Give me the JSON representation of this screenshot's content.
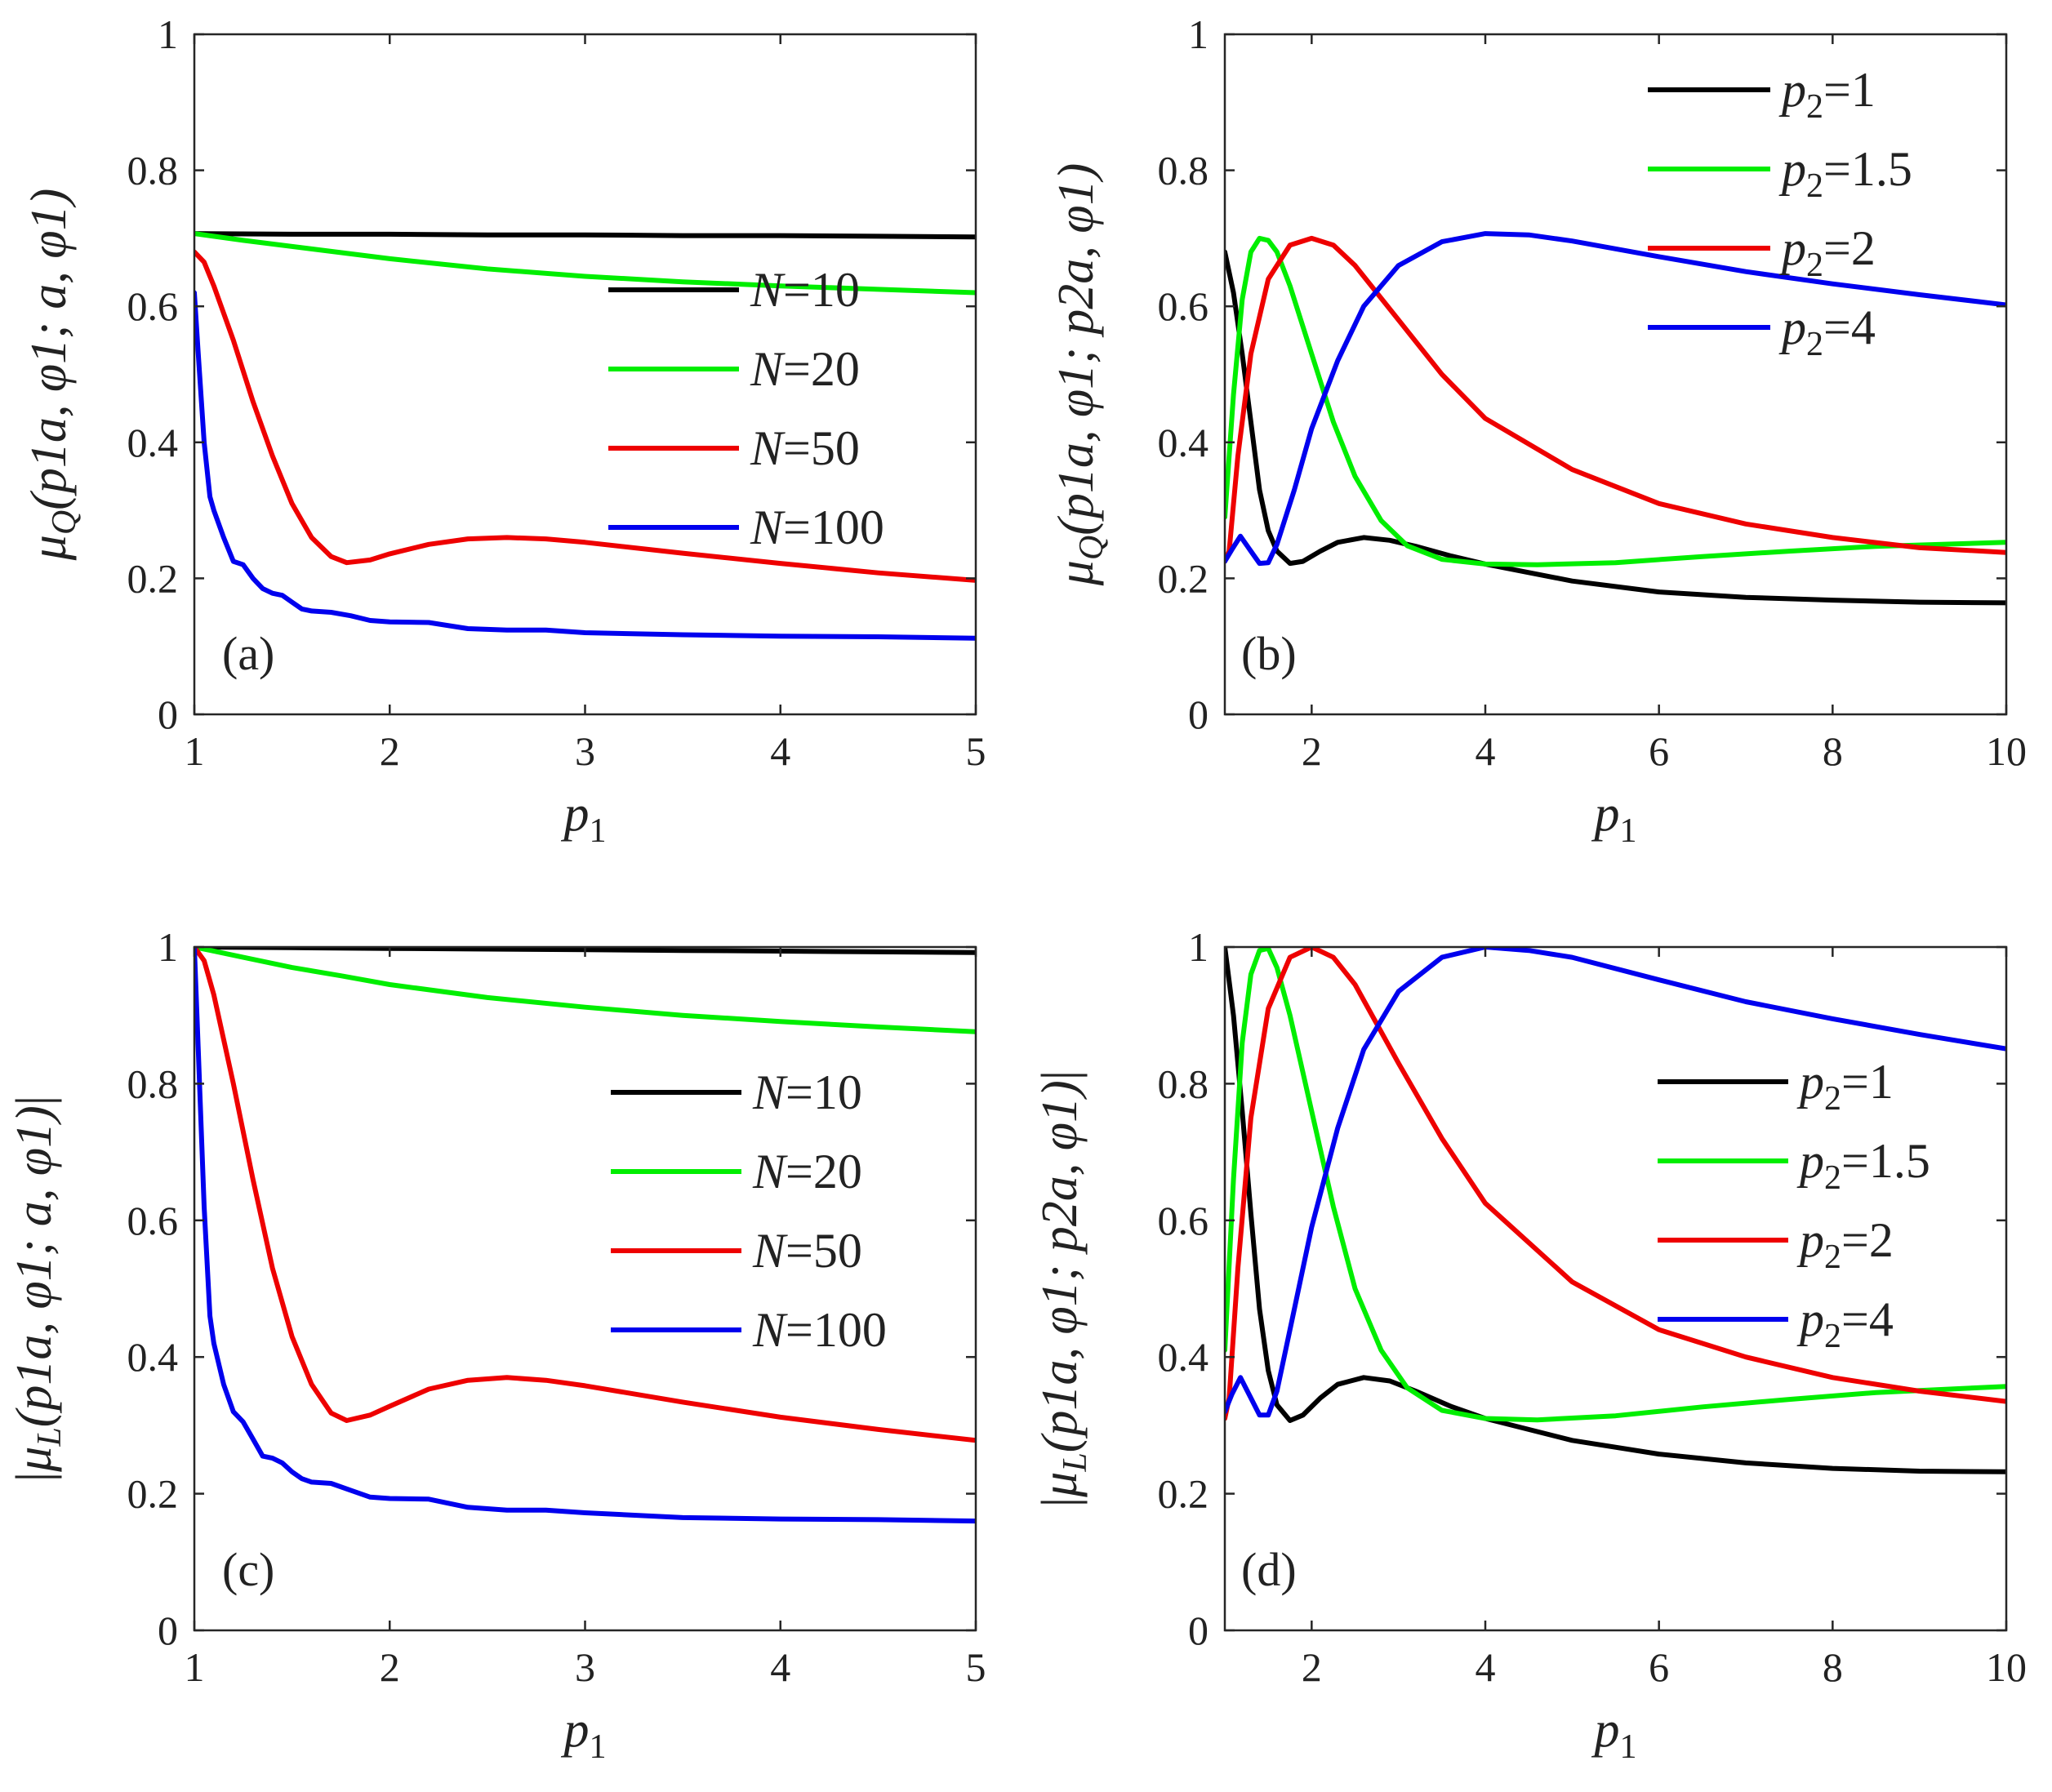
{
  "chart_data": [
    {
      "type": "line",
      "panel_label": "(a)",
      "xlabel": "p1",
      "xlabel_main": "p",
      "xlabel_sub": "1",
      "ylabel": "μQ(p1a, φ1; a, φ1)",
      "xlim": [
        1,
        5
      ],
      "ylim": [
        0,
        1
      ],
      "xticks": [
        1,
        2,
        3,
        4,
        5
      ],
      "xtick_labels": [
        "1",
        "2",
        "3",
        "4",
        "5"
      ],
      "yticks": [
        0,
        0.2,
        0.4,
        0.6,
        0.8,
        1
      ],
      "ytick_labels": [
        "0",
        "0.2",
        "0.4",
        "0.6",
        "0.8",
        "1"
      ],
      "legend_position": "center-right",
      "series": [
        {
          "name": "N=10",
          "label": "N=10",
          "color": "#000000",
          "x": [
            1,
            1.5,
            2,
            2.5,
            3,
            3.5,
            4,
            4.5,
            5
          ],
          "y": [
            0.707,
            0.706,
            0.706,
            0.705,
            0.705,
            0.704,
            0.704,
            0.703,
            0.702
          ]
        },
        {
          "name": "N=20",
          "label": "N=20",
          "color": "#00ee00",
          "x": [
            1,
            1.25,
            1.5,
            1.75,
            2,
            2.5,
            3,
            3.5,
            4,
            4.5,
            5
          ],
          "y": [
            0.707,
            0.697,
            0.688,
            0.679,
            0.67,
            0.655,
            0.644,
            0.636,
            0.63,
            0.625,
            0.62
          ]
        },
        {
          "name": "N=50",
          "label": "N=50",
          "color": "#ee0000",
          "x": [
            1,
            1.05,
            1.1,
            1.2,
            1.3,
            1.4,
            1.5,
            1.6,
            1.7,
            1.78,
            1.9,
            2.0,
            2.2,
            2.4,
            2.6,
            2.8,
            3.0,
            3.5,
            4.0,
            4.5,
            5.0
          ],
          "y": [
            0.68,
            0.665,
            0.63,
            0.55,
            0.46,
            0.38,
            0.31,
            0.26,
            0.232,
            0.223,
            0.227,
            0.236,
            0.25,
            0.258,
            0.26,
            0.258,
            0.253,
            0.237,
            0.222,
            0.208,
            0.197
          ]
        },
        {
          "name": "N=100",
          "label": "N=100",
          "color": "#0000ee",
          "x": [
            1,
            1.02,
            1.05,
            1.08,
            1.1,
            1.15,
            1.2,
            1.25,
            1.3,
            1.35,
            1.4,
            1.45,
            1.5,
            1.55,
            1.6,
            1.7,
            1.8,
            1.9,
            2.0,
            2.2,
            2.4,
            2.6,
            2.8,
            3.0,
            3.5,
            4.0,
            4.5,
            5.0
          ],
          "y": [
            0.62,
            0.53,
            0.4,
            0.32,
            0.3,
            0.26,
            0.225,
            0.22,
            0.2,
            0.185,
            0.178,
            0.175,
            0.165,
            0.155,
            0.152,
            0.15,
            0.145,
            0.138,
            0.136,
            0.135,
            0.126,
            0.124,
            0.124,
            0.12,
            0.117,
            0.115,
            0.114,
            0.112
          ]
        }
      ]
    },
    {
      "type": "line",
      "panel_label": "(b)",
      "xlabel": "p1",
      "xlabel_main": "p",
      "xlabel_sub": "1",
      "ylabel": "μQ(p1a, φ1; p2a, φ1)",
      "xlim": [
        1,
        10
      ],
      "ylim": [
        0,
        1
      ],
      "xticks": [
        2,
        4,
        6,
        8,
        10
      ],
      "xtick_labels": [
        "2",
        "4",
        "6",
        "8",
        "10"
      ],
      "yticks": [
        0,
        0.2,
        0.4,
        0.6,
        0.8,
        1
      ],
      "ytick_labels": [
        "0",
        "0.2",
        "0.4",
        "0.6",
        "0.8",
        "1"
      ],
      "legend_position": "top-right",
      "series": [
        {
          "name": "p2=1",
          "label": "p2=1",
          "label_main": "p",
          "label_sub": "2",
          "label_rest": "=1",
          "color": "#000000",
          "x": [
            1,
            1.1,
            1.2,
            1.3,
            1.4,
            1.5,
            1.6,
            1.75,
            1.9,
            2.1,
            2.3,
            2.6,
            2.9,
            3.2,
            3.6,
            4.0,
            5.0,
            6.0,
            7.0,
            8.0,
            9.0,
            10.0
          ],
          "y": [
            0.68,
            0.62,
            0.53,
            0.43,
            0.33,
            0.27,
            0.24,
            0.222,
            0.225,
            0.24,
            0.253,
            0.26,
            0.256,
            0.247,
            0.233,
            0.221,
            0.196,
            0.18,
            0.172,
            0.168,
            0.165,
            0.164
          ]
        },
        {
          "name": "p2=1.5",
          "label": "p2=1.5",
          "label_main": "p",
          "label_sub": "2",
          "label_rest": "=1.5",
          "color": "#00ee00",
          "x": [
            1,
            1.1,
            1.2,
            1.3,
            1.4,
            1.5,
            1.6,
            1.75,
            2.0,
            2.25,
            2.5,
            2.8,
            3.1,
            3.5,
            4.0,
            4.6,
            5.5,
            6.5,
            7.5,
            8.5,
            10.0
          ],
          "y": [
            0.29,
            0.47,
            0.61,
            0.68,
            0.7,
            0.697,
            0.68,
            0.63,
            0.53,
            0.43,
            0.35,
            0.285,
            0.248,
            0.228,
            0.221,
            0.22,
            0.223,
            0.232,
            0.24,
            0.247,
            0.253
          ]
        },
        {
          "name": "p2=2",
          "label": "p2=2",
          "label_main": "p",
          "label_sub": "2",
          "label_rest": "=2",
          "color": "#ee0000",
          "x": [
            1,
            1.05,
            1.15,
            1.3,
            1.5,
            1.75,
            2.0,
            2.25,
            2.5,
            3.0,
            3.5,
            4.0,
            5.0,
            6.0,
            7.0,
            8.0,
            9.0,
            10.0
          ],
          "y": [
            0.225,
            0.24,
            0.38,
            0.53,
            0.64,
            0.69,
            0.7,
            0.69,
            0.66,
            0.58,
            0.5,
            0.435,
            0.36,
            0.31,
            0.28,
            0.26,
            0.245,
            0.238
          ]
        },
        {
          "name": "p2=4",
          "label": "p2=4",
          "label_main": "p",
          "label_sub": "2",
          "label_rest": "=4",
          "color": "#0000ee",
          "x": [
            1,
            1.08,
            1.18,
            1.3,
            1.4,
            1.5,
            1.6,
            1.8,
            2.0,
            2.3,
            2.6,
            3.0,
            3.5,
            4.0,
            4.5,
            5.0,
            6.0,
            7.0,
            8.0,
            9.0,
            10.0
          ],
          "y": [
            0.225,
            0.242,
            0.262,
            0.24,
            0.222,
            0.223,
            0.25,
            0.33,
            0.42,
            0.52,
            0.6,
            0.66,
            0.695,
            0.707,
            0.705,
            0.696,
            0.673,
            0.651,
            0.633,
            0.617,
            0.602
          ]
        }
      ]
    },
    {
      "type": "line",
      "panel_label": "(c)",
      "xlabel": "p1",
      "xlabel_main": "p",
      "xlabel_sub": "1",
      "ylabel": "|μL(p1a, φ1; a, φ1)|",
      "xlim": [
        1,
        5
      ],
      "ylim": [
        0,
        1
      ],
      "xticks": [
        1,
        2,
        3,
        4,
        5
      ],
      "xtick_labels": [
        "1",
        "2",
        "3",
        "4",
        "5"
      ],
      "yticks": [
        0,
        0.2,
        0.4,
        0.6,
        0.8,
        1
      ],
      "ytick_labels": [
        "0",
        "0.2",
        "0.4",
        "0.6",
        "0.8",
        "1"
      ],
      "legend_position": "center-right",
      "series": [
        {
          "name": "N=10",
          "label": "N=10",
          "color": "#000000",
          "x": [
            1,
            1.5,
            2,
            2.5,
            3,
            3.5,
            4,
            4.5,
            5
          ],
          "y": [
            1.0,
            0.999,
            0.998,
            0.997,
            0.996,
            0.995,
            0.994,
            0.993,
            0.992
          ]
        },
        {
          "name": "N=20",
          "label": "N=20",
          "color": "#00ee00",
          "x": [
            1,
            1.25,
            1.5,
            1.75,
            2,
            2.5,
            3,
            3.5,
            4,
            4.5,
            5
          ],
          "y": [
            1.0,
            0.985,
            0.97,
            0.958,
            0.945,
            0.926,
            0.912,
            0.9,
            0.891,
            0.883,
            0.876
          ]
        },
        {
          "name": "N=50",
          "label": "N=50",
          "color": "#ee0000",
          "x": [
            1,
            1.05,
            1.1,
            1.2,
            1.3,
            1.4,
            1.5,
            1.6,
            1.7,
            1.78,
            1.9,
            2.0,
            2.2,
            2.4,
            2.6,
            2.8,
            3.0,
            3.5,
            4.0,
            4.5,
            5.0
          ],
          "y": [
            1.0,
            0.98,
            0.93,
            0.8,
            0.66,
            0.53,
            0.43,
            0.36,
            0.318,
            0.307,
            0.315,
            0.328,
            0.353,
            0.366,
            0.37,
            0.366,
            0.358,
            0.334,
            0.312,
            0.294,
            0.278
          ]
        },
        {
          "name": "N=100",
          "label": "N=100",
          "color": "#0000ee",
          "x": [
            1,
            1.02,
            1.05,
            1.08,
            1.1,
            1.15,
            1.2,
            1.25,
            1.3,
            1.35,
            1.4,
            1.45,
            1.5,
            1.55,
            1.6,
            1.7,
            1.8,
            1.9,
            2.0,
            2.2,
            2.4,
            2.6,
            2.8,
            3.0,
            3.5,
            4.0,
            4.5,
            5.0
          ],
          "y": [
            1.0,
            0.85,
            0.62,
            0.46,
            0.42,
            0.36,
            0.32,
            0.305,
            0.28,
            0.255,
            0.252,
            0.245,
            0.232,
            0.222,
            0.217,
            0.215,
            0.205,
            0.195,
            0.193,
            0.192,
            0.18,
            0.176,
            0.176,
            0.172,
            0.165,
            0.163,
            0.162,
            0.16
          ]
        }
      ]
    },
    {
      "type": "line",
      "panel_label": "(d)",
      "xlabel": "p1",
      "xlabel_main": "p",
      "xlabel_sub": "1",
      "ylabel": "|μL(p1a, φ1; p2a, φ1)|",
      "xlim": [
        1,
        10
      ],
      "ylim": [
        0,
        1
      ],
      "xticks": [
        2,
        4,
        6,
        8,
        10
      ],
      "xtick_labels": [
        "2",
        "4",
        "6",
        "8",
        "10"
      ],
      "yticks": [
        0,
        0.2,
        0.4,
        0.6,
        0.8,
        1
      ],
      "ytick_labels": [
        "0",
        "0.2",
        "0.4",
        "0.6",
        "0.8",
        "1"
      ],
      "legend_position": "center-right",
      "series": [
        {
          "name": "p2=1",
          "label": "p2=1",
          "label_main": "p",
          "label_sub": "2",
          "label_rest": "=1",
          "color": "#000000",
          "x": [
            1,
            1.1,
            1.2,
            1.3,
            1.4,
            1.5,
            1.6,
            1.75,
            1.9,
            2.1,
            2.3,
            2.6,
            2.9,
            3.2,
            3.6,
            4.0,
            5.0,
            6.0,
            7.0,
            8.0,
            9.0,
            10.0
          ],
          "y": [
            1.0,
            0.9,
            0.76,
            0.61,
            0.47,
            0.38,
            0.33,
            0.307,
            0.315,
            0.34,
            0.36,
            0.37,
            0.365,
            0.35,
            0.328,
            0.31,
            0.278,
            0.258,
            0.245,
            0.237,
            0.233,
            0.232
          ]
        },
        {
          "name": "p2=1.5",
          "label": "p2=1.5",
          "label_main": "p",
          "label_sub": "2",
          "label_rest": "=1.5",
          "color": "#00ee00",
          "x": [
            1,
            1.1,
            1.2,
            1.3,
            1.4,
            1.5,
            1.6,
            1.75,
            2.0,
            2.25,
            2.5,
            2.8,
            3.1,
            3.5,
            4.0,
            4.6,
            5.5,
            6.5,
            7.5,
            8.5,
            10.0
          ],
          "y": [
            0.41,
            0.66,
            0.86,
            0.96,
            0.995,
            0.998,
            0.97,
            0.9,
            0.76,
            0.62,
            0.5,
            0.41,
            0.355,
            0.322,
            0.31,
            0.308,
            0.314,
            0.327,
            0.338,
            0.348,
            0.357
          ]
        },
        {
          "name": "p2=2",
          "label": "p2=2",
          "label_main": "p",
          "label_sub": "2",
          "label_rest": "=2",
          "color": "#ee0000",
          "x": [
            1,
            1.05,
            1.15,
            1.3,
            1.5,
            1.75,
            2.0,
            2.25,
            2.5,
            3.0,
            3.5,
            4.0,
            5.0,
            6.0,
            7.0,
            8.0,
            9.0,
            10.0
          ],
          "y": [
            0.31,
            0.34,
            0.53,
            0.75,
            0.91,
            0.985,
            1.0,
            0.985,
            0.945,
            0.83,
            0.72,
            0.625,
            0.51,
            0.44,
            0.4,
            0.37,
            0.35,
            0.335
          ]
        },
        {
          "name": "p2=4",
          "label": "p2=4",
          "label_main": "p",
          "label_sub": "2",
          "label_rest": "=4",
          "color": "#0000ee",
          "x": [
            1,
            1.08,
            1.18,
            1.3,
            1.4,
            1.5,
            1.6,
            1.8,
            2.0,
            2.3,
            2.6,
            3.0,
            3.5,
            4.0,
            4.5,
            5.0,
            6.0,
            7.0,
            8.0,
            9.0,
            10.0
          ],
          "y": [
            0.32,
            0.345,
            0.37,
            0.34,
            0.315,
            0.315,
            0.35,
            0.47,
            0.59,
            0.735,
            0.85,
            0.935,
            0.985,
            1.0,
            0.995,
            0.985,
            0.952,
            0.92,
            0.895,
            0.872,
            0.851
          ]
        }
      ]
    }
  ]
}
